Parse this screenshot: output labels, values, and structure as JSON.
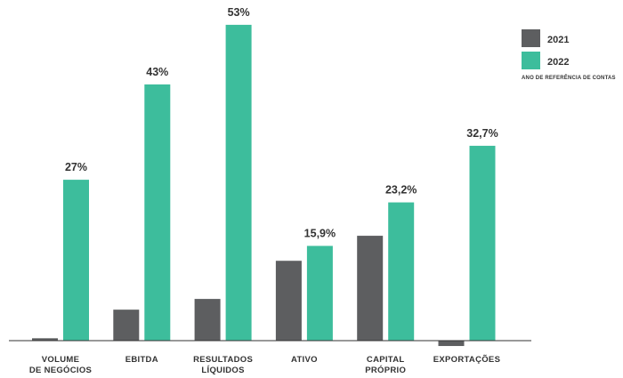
{
  "chart_data": {
    "type": "bar",
    "categories": [
      [
        "VOLUME",
        "DE NEGÓCIOS"
      ],
      [
        "EBITDA"
      ],
      [
        "RESULTADOS",
        "LÍQUIDOS"
      ],
      [
        "ATIVO"
      ],
      [
        "CAPITAL",
        "PRÓPRIO"
      ],
      [
        "EXPORTAÇÕES"
      ]
    ],
    "series": [
      {
        "name": "2021",
        "color": "#5d5e60",
        "values": [
          0.4,
          5.2,
          7.0,
          13.4,
          17.6,
          -0.9
        ]
      },
      {
        "name": "2022",
        "color": "#3dbd9c",
        "values": [
          27,
          43,
          53,
          15.9,
          23.2,
          32.7
        ]
      }
    ],
    "value_labels": [
      "27%",
      "43%",
      "53%",
      "15,9%",
      "23,2%",
      "32,7%"
    ],
    "legend_note": "ANO DE REFERÊNCIA DE CONTAS",
    "legend_position": "top-right",
    "ylim": [
      -2,
      57
    ],
    "grid": false
  }
}
